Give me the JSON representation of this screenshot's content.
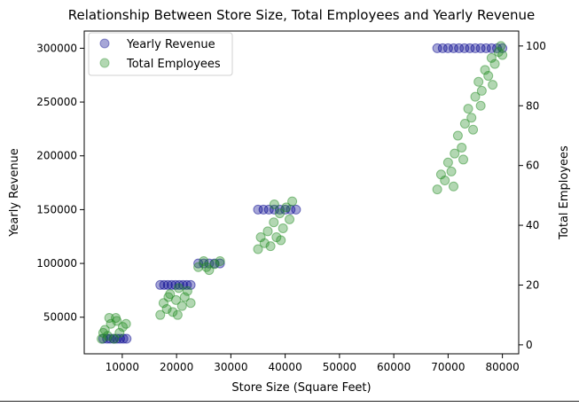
{
  "chart_data": {
    "type": "scatter",
    "title": "Relationship Between Store Size, Total Employees and Yearly Revenue",
    "xlabel": "Store Size (Square Feet)",
    "ylabel": "Yearly Revenue",
    "y2label": "Total Employees",
    "xlim": [
      3000,
      83000
    ],
    "ylim": [
      16000,
      316000
    ],
    "y2lim": [
      -3,
      105
    ],
    "xticks": [
      10000,
      20000,
      30000,
      40000,
      50000,
      60000,
      70000,
      80000
    ],
    "yticks": [
      50000,
      100000,
      150000,
      200000,
      250000,
      300000
    ],
    "y2ticks": [
      0,
      20,
      40,
      60,
      80,
      100
    ],
    "grid": false,
    "legend_position": "top-left",
    "series": [
      {
        "name": "Yearly Revenue",
        "axis": "left",
        "color": "#00008b",
        "alpha": 0.35,
        "points": [
          [
            6500,
            30000
          ],
          [
            7200,
            30000
          ],
          [
            7800,
            30000
          ],
          [
            8400,
            30000
          ],
          [
            9000,
            30000
          ],
          [
            9600,
            30000
          ],
          [
            10200,
            30000
          ],
          [
            10800,
            30000
          ],
          [
            17000,
            80000
          ],
          [
            17700,
            80000
          ],
          [
            18400,
            80000
          ],
          [
            19100,
            80000
          ],
          [
            19800,
            80000
          ],
          [
            20500,
            80000
          ],
          [
            21200,
            80000
          ],
          [
            21900,
            80000
          ],
          [
            22600,
            80000
          ],
          [
            24000,
            100000
          ],
          [
            25000,
            100000
          ],
          [
            26000,
            100000
          ],
          [
            27000,
            100000
          ],
          [
            28000,
            100000
          ],
          [
            35000,
            150000
          ],
          [
            36000,
            150000
          ],
          [
            37000,
            150000
          ],
          [
            38000,
            150000
          ],
          [
            39000,
            150000
          ],
          [
            40000,
            150000
          ],
          [
            41000,
            150000
          ],
          [
            42000,
            150000
          ],
          [
            68000,
            300000
          ],
          [
            69000,
            300000
          ],
          [
            70000,
            300000
          ],
          [
            71000,
            300000
          ],
          [
            72000,
            300000
          ],
          [
            73000,
            300000
          ],
          [
            74000,
            300000
          ],
          [
            75000,
            300000
          ],
          [
            76000,
            300000
          ],
          [
            77000,
            300000
          ],
          [
            78000,
            300000
          ],
          [
            79000,
            300000
          ],
          [
            80000,
            300000
          ]
        ]
      },
      {
        "name": "Total Employees",
        "axis": "right",
        "color": "#228b22",
        "alpha": 0.35,
        "points": [
          [
            6200,
            2
          ],
          [
            6800,
            5
          ],
          [
            7300,
            3
          ],
          [
            7900,
            7
          ],
          [
            8500,
            2
          ],
          [
            9000,
            8
          ],
          [
            9500,
            4
          ],
          [
            10100,
            6
          ],
          [
            10700,
            7
          ],
          [
            7600,
            9
          ],
          [
            8800,
            9
          ],
          [
            6500,
            4
          ],
          [
            17000,
            10
          ],
          [
            17600,
            14
          ],
          [
            18200,
            12
          ],
          [
            18800,
            17
          ],
          [
            19300,
            11
          ],
          [
            19900,
            15
          ],
          [
            20400,
            19
          ],
          [
            21000,
            13
          ],
          [
            21500,
            16
          ],
          [
            22000,
            18
          ],
          [
            22600,
            14
          ],
          [
            20200,
            10
          ],
          [
            18500,
            16
          ],
          [
            24000,
            26
          ],
          [
            25000,
            28
          ],
          [
            26000,
            25
          ],
          [
            27000,
            27
          ],
          [
            28000,
            28
          ],
          [
            25500,
            26
          ],
          [
            35000,
            32
          ],
          [
            35500,
            36
          ],
          [
            36200,
            34
          ],
          [
            36800,
            38
          ],
          [
            37300,
            33
          ],
          [
            37900,
            41
          ],
          [
            38400,
            36
          ],
          [
            39000,
            44
          ],
          [
            39600,
            39
          ],
          [
            40200,
            46
          ],
          [
            40800,
            42
          ],
          [
            41300,
            48
          ],
          [
            39200,
            35
          ],
          [
            38000,
            47
          ],
          [
            68000,
            52
          ],
          [
            68700,
            57
          ],
          [
            69400,
            55
          ],
          [
            70000,
            61
          ],
          [
            70600,
            58
          ],
          [
            71200,
            64
          ],
          [
            71800,
            70
          ],
          [
            72500,
            66
          ],
          [
            73100,
            74
          ],
          [
            73700,
            79
          ],
          [
            74300,
            76
          ],
          [
            75000,
            83
          ],
          [
            75600,
            88
          ],
          [
            76200,
            85
          ],
          [
            76800,
            92
          ],
          [
            77400,
            90
          ],
          [
            78000,
            96
          ],
          [
            78600,
            94
          ],
          [
            79300,
            98
          ],
          [
            80000,
            97
          ],
          [
            71000,
            53
          ],
          [
            72800,
            62
          ],
          [
            74600,
            72
          ],
          [
            76000,
            80
          ],
          [
            78200,
            87
          ],
          [
            79700,
            100
          ]
        ]
      }
    ]
  }
}
